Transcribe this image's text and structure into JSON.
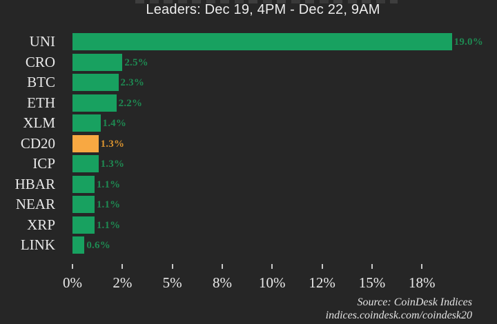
{
  "header": {
    "title": "Leaders: Dec 19, 4PM - Dec 22, 9AM"
  },
  "chart_data": {
    "type": "bar",
    "orientation": "horizontal",
    "title": "Leaders: Dec 19, 4PM - Dec 22, 9AM",
    "categories": [
      "UNI",
      "CRO",
      "BTC",
      "ETH",
      "XLM",
      "CD20",
      "ICP",
      "HBAR",
      "NEAR",
      "XRP",
      "LINK"
    ],
    "values": [
      19.0,
      2.5,
      2.3,
      2.2,
      1.4,
      1.3,
      1.3,
      1.1,
      1.1,
      1.1,
      0.6
    ],
    "value_labels": [
      "19.0%",
      "2.5%",
      "2.3%",
      "2.2%",
      "1.4%",
      "1.3%",
      "1.3%",
      "1.1%",
      "1.1%",
      "1.1%",
      "0.6%"
    ],
    "highlight_category": "CD20",
    "highlight_index": 5,
    "xlabel": "",
    "ylabel": "",
    "xlim": [
      0,
      19.5
    ],
    "x_ticks": [
      0,
      2.5,
      5,
      7.5,
      10,
      12.5,
      15,
      17.5
    ],
    "x_tick_labels": [
      "0%",
      "2%",
      "5%",
      "8%",
      "10%",
      "12%",
      "15%",
      "18%"
    ],
    "grid": false,
    "legend": "none",
    "colors": {
      "background": "#262626",
      "bar_default": "#18a160",
      "bar_highlight": "#f8a842",
      "value_label_default": "#1e8a52",
      "value_label_highlight": "#d9932f",
      "category_text": "#e9e9e9",
      "tick_mark": "#c9c9c9",
      "title_text": "#ededed"
    }
  },
  "footer": {
    "source_line1": "Source: CoinDesk Indices",
    "source_line2": "indices.coindesk.com/coindesk20"
  }
}
